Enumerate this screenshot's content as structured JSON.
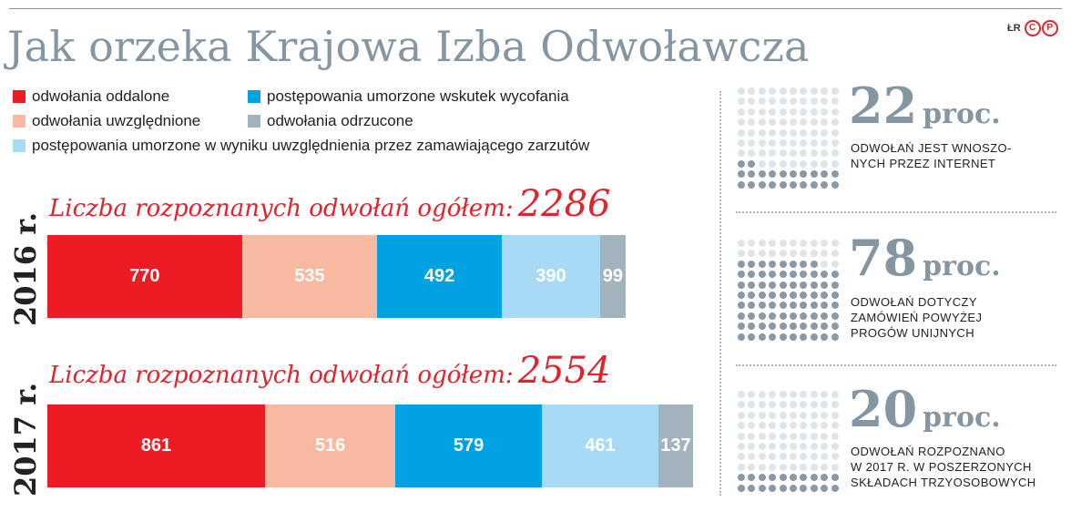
{
  "header": {
    "title": "Jak orzeka Krajowa Izba Odwoławcza",
    "author": "ŁR",
    "logo": {
      "letters": [
        "C",
        "P"
      ],
      "color": "#e0232d"
    }
  },
  "colors": {
    "oddalone": "#ed1c24",
    "uwzglednione": "#f7b9a0",
    "umorzone_wycofanie": "#00a2e2",
    "odrzucone": "#a3b3be",
    "umorzone_zarzuty": "#a8daf5",
    "title_gray": "#8596a3",
    "title_red": "#e0232d",
    "dot_dark": "#8a99a5",
    "dot_light": "#dfe4e8"
  },
  "legend": [
    {
      "label": "odwołania oddalone",
      "color": "#ed1c24"
    },
    {
      "label": "odwołania uwzględnione",
      "color": "#f7b9a0"
    },
    {
      "label": "postępowania umorzone w wyniku uwzględnienia przez zamawiającego zarzutów",
      "color": "#a8daf5"
    },
    {
      "label": "postępowania umorzone wskutek wycofania",
      "color": "#00a2e2"
    },
    {
      "label": "odwołania odrzucone",
      "color": "#a3b3be"
    }
  ],
  "chart_data": {
    "type": "bar",
    "stacked": true,
    "orientation": "horizontal",
    "categories": [
      "2016 r.",
      "2017 r."
    ],
    "totals_label": "Liczba rozpoznanych odwołań ogółem:",
    "totals": [
      "2286",
      "2554"
    ],
    "series": [
      {
        "name": "odwołania oddalone",
        "values": [
          770,
          861
        ],
        "labels": [
          "770",
          "861"
        ],
        "color": "#ed1c24"
      },
      {
        "name": "odwołania uwzględnione",
        "values": [
          535,
          516
        ],
        "labels": [
          "535",
          "516"
        ],
        "color": "#f7b9a0"
      },
      {
        "name": "postępowania umorzone wskutek wycofania",
        "values": [
          492,
          579
        ],
        "labels": [
          "492",
          "579"
        ],
        "color": "#00a2e2"
      },
      {
        "name": "postępowania umorzone w wyniku uwzględnienia przez zamawiającego zarzutów",
        "values": [
          390,
          461
        ],
        "labels": [
          "390",
          "461"
        ],
        "color": "#a8daf5"
      },
      {
        "name": "odwołania odrzucone",
        "values": [
          99,
          137
        ],
        "labels": [
          "99",
          "137"
        ],
        "color": "#a3b3be"
      }
    ],
    "xlim": [
      0,
      2554
    ]
  },
  "stats": [
    {
      "value": "22",
      "unit": "proc.",
      "percent": 22,
      "lines": [
        "ODWOŁAŃ JEST WNOSZO-",
        "NYCH PRZEZ INTERNET"
      ]
    },
    {
      "value": "78",
      "unit": "proc.",
      "percent": 78,
      "lines": [
        "ODWOŁAŃ DOTYCZY",
        "ZAMÓWIEŃ POWYŻEJ",
        "PROGÓW UNIJNYCH"
      ]
    },
    {
      "value": "20",
      "unit": "proc.",
      "percent": 20,
      "lines": [
        "ODWOŁAŃ ROZPOZNANO",
        "W 2017 R. W POSZERZONYCH",
        "SKŁADACH TRZYOSOBOWYCH"
      ]
    }
  ]
}
